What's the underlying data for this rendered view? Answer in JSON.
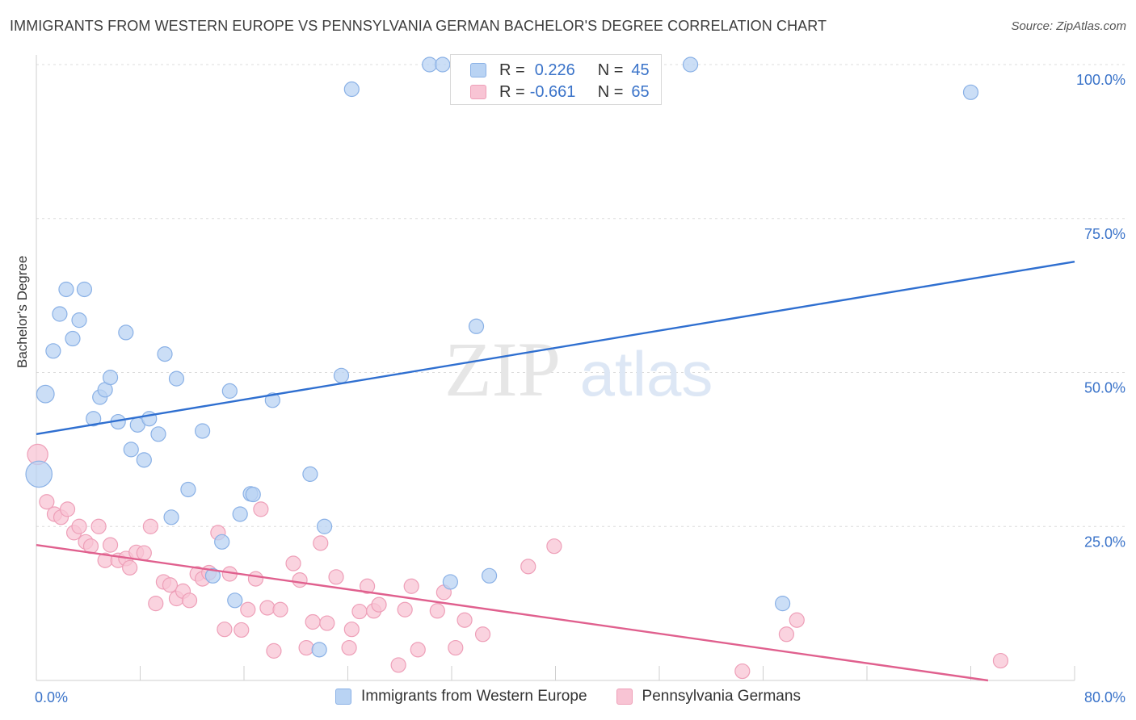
{
  "header": {
    "title": "IMMIGRANTS FROM WESTERN EUROPE VS PENNSYLVANIA GERMAN BACHELOR'S DEGREE CORRELATION CHART",
    "source": "Source: ZipAtlas.com"
  },
  "watermark": {
    "zip": "ZIP",
    "atlas": "atlas"
  },
  "legend_top": {
    "rows": [
      {
        "r_label": "R =",
        "r_value": "0.226",
        "n_label": "N =",
        "n_value": "45"
      },
      {
        "r_label": "R =",
        "r_value": "-0.661",
        "n_label": "N =",
        "n_value": "65"
      }
    ]
  },
  "legend_bottom": {
    "series_a": "Immigrants from Western Europe",
    "series_b": "Pennsylvania Germans"
  },
  "colors": {
    "blue_fill": "#b9d3f3",
    "blue_stroke": "#8ab1e6",
    "blue_line": "#2f6fd0",
    "pink_fill": "#f8c4d4",
    "pink_stroke": "#ee9fb8",
    "pink_line": "#e0608e",
    "axis_text": "#3a73c9",
    "grid": "#dcdcdc"
  },
  "chart_data": {
    "type": "scatter",
    "ylabel": "Bachelor's Degree",
    "xlim": [
      0,
      80
    ],
    "ylim": [
      0,
      100
    ],
    "x_tick_labels": [
      "0.0%",
      "80.0%"
    ],
    "y_ticks": [
      25,
      50,
      75,
      100
    ],
    "y_tick_labels": [
      "25.0%",
      "50.0%",
      "75.0%",
      "100.0%"
    ],
    "grid": true,
    "series": [
      {
        "name": "Immigrants from Western Europe",
        "color": "blue",
        "trend": {
          "x": [
            0,
            80
          ],
          "y": [
            40,
            68
          ]
        },
        "points": [
          [
            0.2,
            33.5,
            18
          ],
          [
            0.7,
            46.5,
            12
          ],
          [
            1.3,
            53.5,
            10
          ],
          [
            1.8,
            59.5,
            10
          ],
          [
            2.3,
            63.5,
            10
          ],
          [
            2.8,
            55.5,
            10
          ],
          [
            3.3,
            58.5,
            10
          ],
          [
            3.7,
            63.5,
            10
          ],
          [
            4.4,
            42.5,
            10
          ],
          [
            4.9,
            46.0,
            10
          ],
          [
            5.3,
            47.2,
            10
          ],
          [
            5.7,
            49.2,
            10
          ],
          [
            6.3,
            42.0,
            10
          ],
          [
            6.9,
            56.5,
            10
          ],
          [
            7.3,
            37.5,
            10
          ],
          [
            7.8,
            41.5,
            10
          ],
          [
            8.3,
            35.8,
            10
          ],
          [
            8.7,
            42.5,
            10
          ],
          [
            9.4,
            40.0,
            10
          ],
          [
            9.9,
            53.0,
            10
          ],
          [
            10.4,
            26.5,
            10
          ],
          [
            10.8,
            49.0,
            10
          ],
          [
            11.7,
            31.0,
            10
          ],
          [
            12.8,
            40.5,
            10
          ],
          [
            13.6,
            17.0,
            10
          ],
          [
            14.3,
            22.5,
            10
          ],
          [
            14.9,
            47.0,
            10
          ],
          [
            15.3,
            13.0,
            10
          ],
          [
            15.7,
            27.0,
            10
          ],
          [
            16.5,
            30.3,
            10
          ],
          [
            16.7,
            30.2,
            10
          ],
          [
            18.2,
            45.5,
            10
          ],
          [
            21.1,
            33.5,
            10
          ],
          [
            21.8,
            5.0,
            10
          ],
          [
            22.2,
            25.0,
            10
          ],
          [
            23.5,
            49.5,
            10
          ],
          [
            24.3,
            96.0,
            10
          ],
          [
            30.3,
            100.0,
            10
          ],
          [
            31.3,
            100.0,
            10
          ],
          [
            31.9,
            16.0,
            10
          ],
          [
            33.9,
            57.5,
            10
          ],
          [
            34.9,
            17.0,
            10
          ],
          [
            50.4,
            100.0,
            10
          ],
          [
            57.5,
            12.5,
            10
          ],
          [
            72.0,
            95.5,
            10
          ]
        ]
      },
      {
        "name": "Pennsylvania Germans",
        "color": "pink",
        "trend": {
          "x": [
            0,
            80
          ],
          "y": [
            22,
            -2
          ]
        },
        "points": [
          [
            0.1,
            36.7,
            14
          ],
          [
            0.8,
            29.0,
            10
          ],
          [
            1.4,
            27.0,
            10
          ],
          [
            1.9,
            26.5,
            10
          ],
          [
            2.4,
            27.8,
            10
          ],
          [
            2.9,
            24.0,
            10
          ],
          [
            3.3,
            25.0,
            10
          ],
          [
            3.8,
            22.5,
            10
          ],
          [
            4.2,
            21.8,
            10
          ],
          [
            4.8,
            25.0,
            10
          ],
          [
            5.3,
            19.5,
            10
          ],
          [
            5.7,
            22.0,
            10
          ],
          [
            6.3,
            19.5,
            10
          ],
          [
            6.9,
            19.8,
            10
          ],
          [
            7.2,
            18.3,
            10
          ],
          [
            7.7,
            20.8,
            10
          ],
          [
            8.3,
            20.7,
            10
          ],
          [
            8.8,
            25.0,
            10
          ],
          [
            9.2,
            12.5,
            10
          ],
          [
            9.8,
            16.0,
            10
          ],
          [
            10.3,
            15.5,
            10
          ],
          [
            10.8,
            13.3,
            10
          ],
          [
            11.3,
            14.5,
            10
          ],
          [
            11.8,
            13.0,
            10
          ],
          [
            12.4,
            17.3,
            10
          ],
          [
            12.8,
            16.5,
            10
          ],
          [
            13.3,
            17.5,
            10
          ],
          [
            14.0,
            24.0,
            10
          ],
          [
            14.5,
            8.3,
            10
          ],
          [
            14.9,
            17.3,
            10
          ],
          [
            15.8,
            8.2,
            10
          ],
          [
            16.3,
            11.5,
            10
          ],
          [
            16.9,
            16.5,
            10
          ],
          [
            17.3,
            27.8,
            10
          ],
          [
            17.8,
            11.8,
            10
          ],
          [
            18.3,
            4.8,
            10
          ],
          [
            18.8,
            11.5,
            10
          ],
          [
            19.8,
            19.0,
            10
          ],
          [
            20.3,
            16.3,
            10
          ],
          [
            20.8,
            5.3,
            10
          ],
          [
            21.3,
            9.5,
            10
          ],
          [
            21.9,
            22.3,
            10
          ],
          [
            22.4,
            9.3,
            10
          ],
          [
            23.1,
            16.8,
            10
          ],
          [
            24.1,
            5.3,
            10
          ],
          [
            24.3,
            8.3,
            10
          ],
          [
            24.9,
            11.2,
            10
          ],
          [
            25.5,
            15.3,
            10
          ],
          [
            26.0,
            11.3,
            10
          ],
          [
            26.4,
            12.3,
            10
          ],
          [
            27.9,
            2.5,
            10
          ],
          [
            28.4,
            11.5,
            10
          ],
          [
            28.9,
            15.3,
            10
          ],
          [
            29.4,
            5.0,
            10
          ],
          [
            30.9,
            11.3,
            10
          ],
          [
            31.4,
            14.3,
            10
          ],
          [
            32.3,
            5.3,
            10
          ],
          [
            33.0,
            9.8,
            10
          ],
          [
            34.4,
            7.5,
            10
          ],
          [
            37.9,
            18.5,
            10
          ],
          [
            39.9,
            21.8,
            10
          ],
          [
            54.4,
            1.5,
            10
          ],
          [
            57.8,
            7.5,
            10
          ],
          [
            58.6,
            9.8,
            10
          ],
          [
            74.3,
            3.2,
            10
          ]
        ]
      }
    ]
  }
}
